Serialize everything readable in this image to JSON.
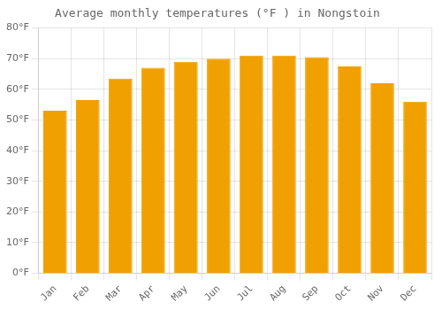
{
  "chart_data": {
    "type": "bar",
    "title": "Average monthly temperatures (°F ) in Nongstoin",
    "categories": [
      "Jan",
      "Feb",
      "Mar",
      "Apr",
      "May",
      "Jun",
      "Jul",
      "Aug",
      "Sep",
      "Oct",
      "Nov",
      "Dec"
    ],
    "values": [
      53,
      56.5,
      63.5,
      67,
      69,
      70,
      71,
      71,
      70.5,
      67.5,
      62,
      56
    ],
    "color": "#F0A000",
    "ylim": [
      0,
      80
    ],
    "yticks": [
      {
        "value": 0,
        "label": "0°F"
      },
      {
        "value": 10,
        "label": "10°F"
      },
      {
        "value": 20,
        "label": "20°F"
      },
      {
        "value": 30,
        "label": "30°F"
      },
      {
        "value": 40,
        "label": "40°F"
      },
      {
        "value": 50,
        "label": "50°F"
      },
      {
        "value": 60,
        "label": "60°F"
      },
      {
        "value": 70,
        "label": "70°F"
      },
      {
        "value": 80,
        "label": "80°F"
      }
    ],
    "grid": true
  }
}
